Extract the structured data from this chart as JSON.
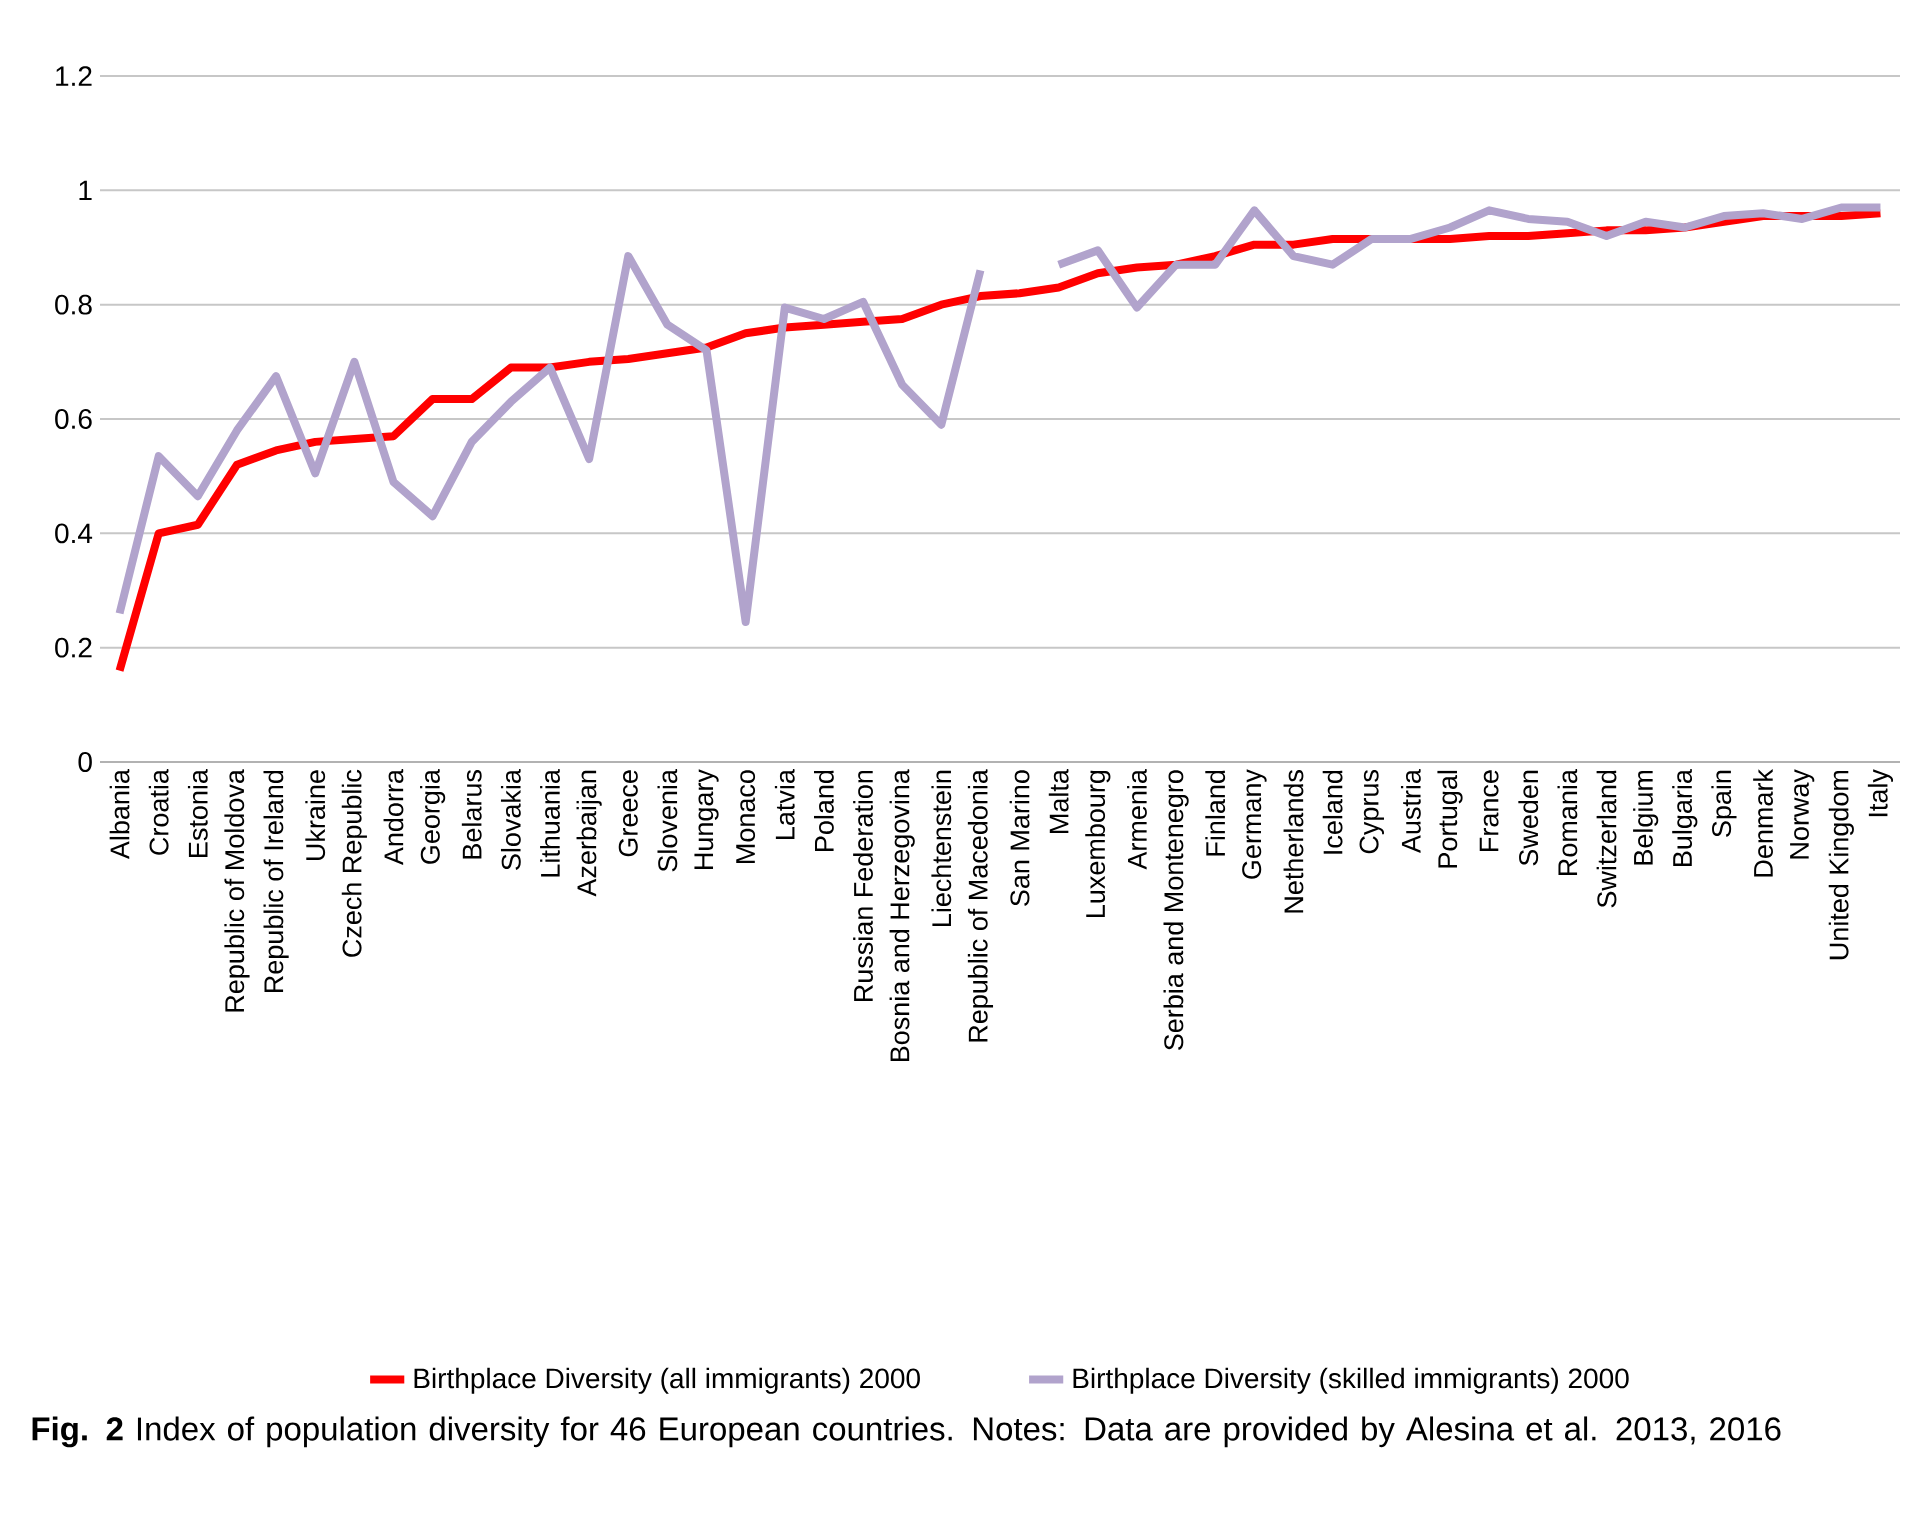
{
  "chart_data": {
    "type": "line",
    "categories": [
      "Albania",
      "Croatia",
      "Estonia",
      "Republic of Moldova",
      "Republic of Ireland",
      "Ukraine",
      "Czech Republic",
      "Andorra",
      "Georgia",
      "Belarus",
      "Slovakia",
      "Lithuania",
      "Azerbaijan",
      "Greece",
      "Slovenia",
      "Hungary",
      "Monaco",
      "Latvia",
      "Poland",
      "Russian Federation",
      "Bosnia and Herzegovina",
      "Liechtenstein",
      "Republic of Macedonia",
      "San Marino",
      "Malta",
      "Luxembourg",
      "Armenia",
      "Serbia and Montenegro",
      "Finland",
      "Germany",
      "Netherlands",
      "Iceland",
      "Cyprus",
      "Austria",
      "Portugal",
      "France",
      "Sweden",
      "Romania",
      "Switzerland",
      "Belgium",
      "Bulgaria",
      "Spain",
      "Denmark",
      "Norway",
      "United Kingdom",
      "Italy"
    ],
    "series": [
      {
        "name": "Birthplace Diversity (all immigrants) 2000",
        "color": "#ff0000",
        "values": [
          0.16,
          0.4,
          0.415,
          0.52,
          0.545,
          0.56,
          0.565,
          0.57,
          0.635,
          0.635,
          0.69,
          0.69,
          0.7,
          0.705,
          0.715,
          0.725,
          0.75,
          0.76,
          0.765,
          0.77,
          0.775,
          0.8,
          0.815,
          0.82,
          0.83,
          0.855,
          0.865,
          0.87,
          0.885,
          0.905,
          0.905,
          0.915,
          0.915,
          0.915,
          0.915,
          0.92,
          0.92,
          0.925,
          0.93,
          0.93,
          0.935,
          0.945,
          0.955,
          0.955,
          0.955,
          0.96
        ]
      },
      {
        "name": "Birthplace Diversity (skilled immigrants) 2000",
        "color": "#b1a3cc",
        "values": [
          0.26,
          0.535,
          0.465,
          0.58,
          0.675,
          0.505,
          0.7,
          0.49,
          0.43,
          0.56,
          0.63,
          0.69,
          0.53,
          0.885,
          0.765,
          0.72,
          0.245,
          0.795,
          0.775,
          0.805,
          0.66,
          0.59,
          0.86,
          null,
          0.87,
          0.895,
          0.795,
          0.87,
          0.87,
          0.965,
          0.885,
          0.87,
          0.915,
          0.915,
          0.935,
          0.965,
          0.95,
          0.945,
          0.92,
          0.945,
          0.935,
          0.955,
          0.96,
          0.95,
          0.97,
          0.97
        ]
      }
    ],
    "ylim": [
      0,
      1.2
    ],
    "yticks": [
      0,
      0.2,
      0.4,
      0.6,
      0.8,
      1,
      1.2
    ],
    "grid": "y",
    "legend": "bottom",
    "marker": "none",
    "line_style": "solid",
    "annotations": [
      "**Fig. 2** Index of population diversity for 46 European countries. Notes: Data are provided by Alesina et al. 2013, 2016"
    ]
  }
}
